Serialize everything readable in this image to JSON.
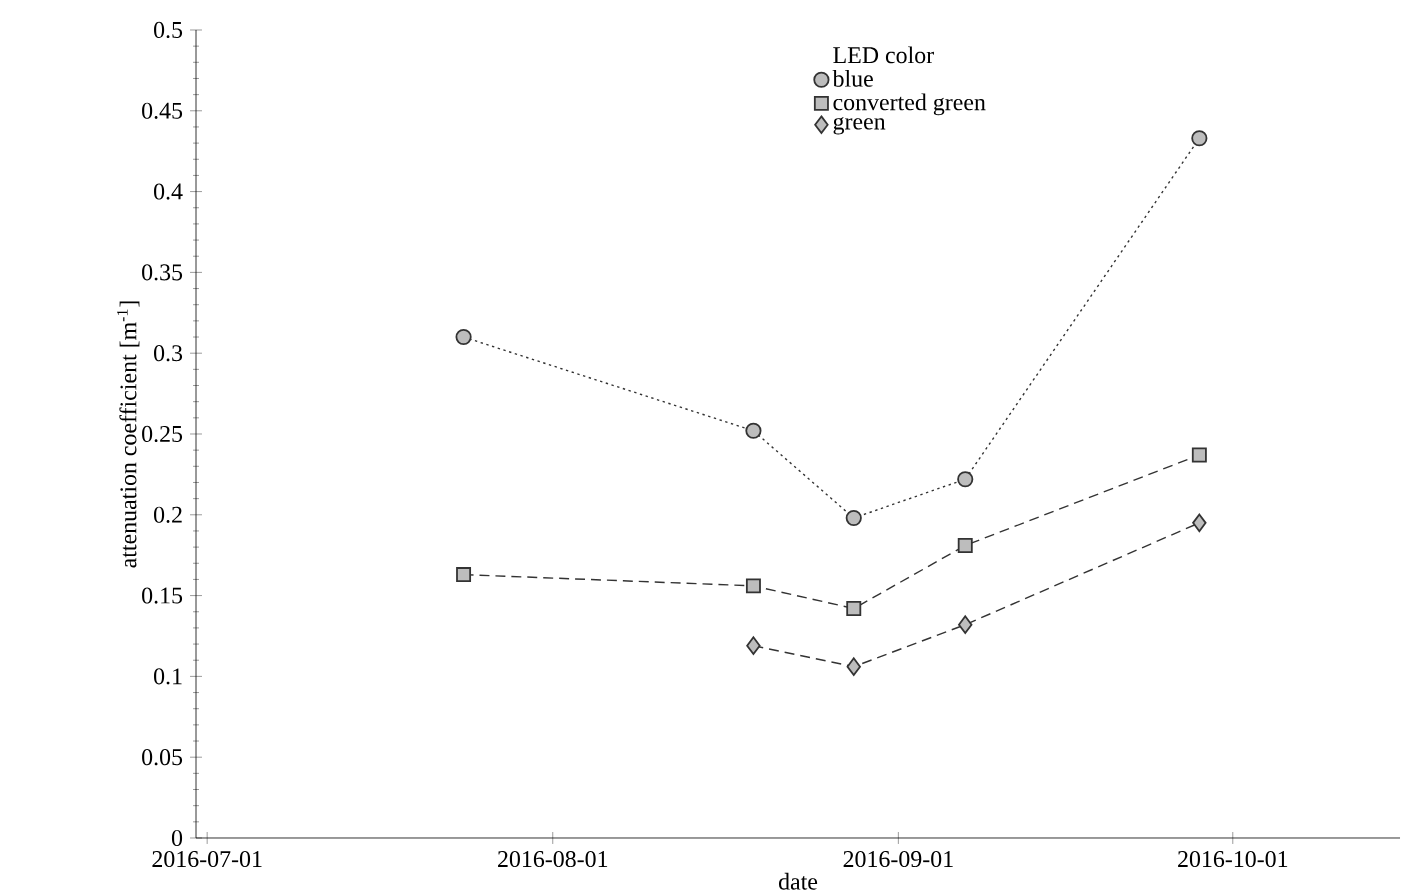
{
  "chart_data": {
    "type": "line",
    "xlabel": "date",
    "ylabel": "attenuation coefficient  [m$^{-1}$]",
    "legend_title": "LED color",
    "legend": "top",
    "xlim": [
      "2016-06-30",
      "2016-10-16"
    ],
    "xticks": [
      "2016-07-01",
      "2016-08-01",
      "2016-09-01",
      "2016-10-01"
    ],
    "ylim": [
      0,
      0.5
    ],
    "yticks": [
      0,
      0.05,
      0.1,
      0.15,
      0.2,
      0.25,
      0.3,
      0.35,
      0.4,
      0.45,
      0.5
    ],
    "grid": false,
    "series": [
      {
        "name": "blue",
        "color": "#bdbdbd",
        "marker": "circle",
        "line_style": "dotted",
        "x": [
          "2016-07-24",
          "2016-08-19",
          "2016-08-28",
          "2016-09-07",
          "2016-09-28"
        ],
        "values": [
          0.31,
          0.252,
          0.198,
          0.222,
          0.433
        ]
      },
      {
        "name": "converted green",
        "color": "#bdbdbd",
        "marker": "square",
        "line_style": "dashed",
        "x": [
          "2016-07-24",
          "2016-08-19",
          "2016-08-28",
          "2016-09-07",
          "2016-09-28"
        ],
        "values": [
          0.163,
          0.156,
          0.142,
          0.181,
          0.237
        ]
      },
      {
        "name": "green",
        "color": "#bdbdbd",
        "marker": "diamond",
        "line_style": "dashed",
        "x": [
          "2016-08-19",
          "2016-08-28",
          "2016-09-07",
          "2016-09-28"
        ],
        "values": [
          0.119,
          0.106,
          0.132,
          0.195
        ]
      }
    ]
  }
}
